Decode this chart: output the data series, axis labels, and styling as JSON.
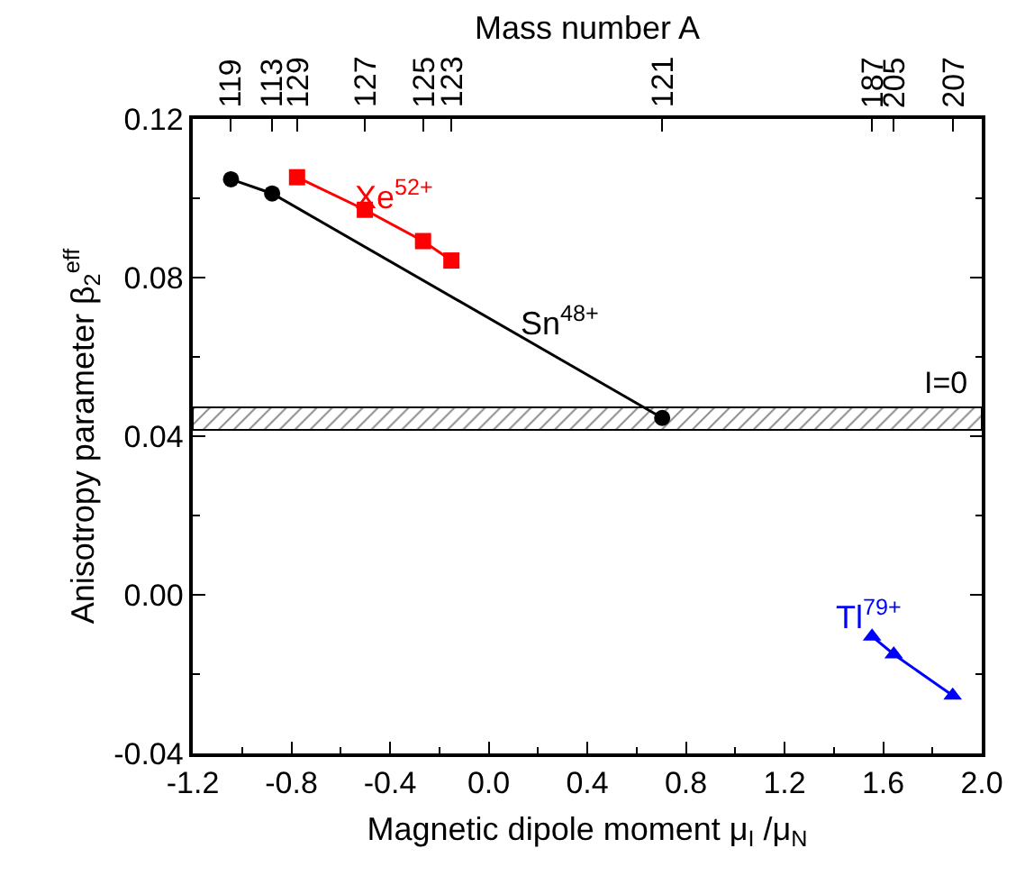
{
  "chart_data": {
    "type": "line",
    "xlabel": "Magnetic dipole moment μ$_{I}$ /μ$_{N}$",
    "ylabel": "Anisotropy parameter β$_{2}$$^{eff}$",
    "x2label": "Mass number A",
    "xlim": [
      -1.2,
      2.0
    ],
    "xticks": [
      -1.2,
      -0.8,
      -0.4,
      {
        "value": 0,
        "label": "0.0"
      },
      0.4,
      0.8,
      1.2,
      1.6,
      {
        "value": 2,
        "label": "2.0"
      }
    ],
    "ylim": [
      -0.04,
      0.12
    ],
    "yticks": [
      -0.04,
      {
        "value": 0,
        "label": "0.00"
      },
      0.04,
      0.08,
      0.12
    ],
    "series": [
      {
        "color": "#000000",
        "marker": "circle",
        "x": [
          -1.045,
          -0.878,
          0.704
        ],
        "values": [
          0.1048,
          0.1012,
          0.0446
        ]
      },
      {
        "color": "#ff0000",
        "marker": "square",
        "x": [
          -0.777,
          -0.502,
          -0.266,
          -0.151
        ],
        "values": [
          0.1053,
          0.0971,
          0.0892,
          0.0843
        ]
      },
      {
        "color": "#0000ff",
        "marker": "triangle",
        "x": [
          1.555,
          1.643,
          1.882
        ],
        "values": [
          -0.0105,
          -0.015,
          -0.0254
        ]
      }
    ],
    "annotations": [
      "Sn$^{48+}$",
      "Xe$^{52+}$",
      "Tl$^{79+}$",
      "119",
      "113",
      "121",
      "129",
      "127",
      "125",
      "123",
      "187",
      "205",
      "207"
    ],
    "bands": [
      {
        "axis": "y",
        "from": 0.0416,
        "to": 0.0473,
        "label": "I=0",
        "color": "#000000"
      }
    ],
    "line_style": "solid"
  }
}
